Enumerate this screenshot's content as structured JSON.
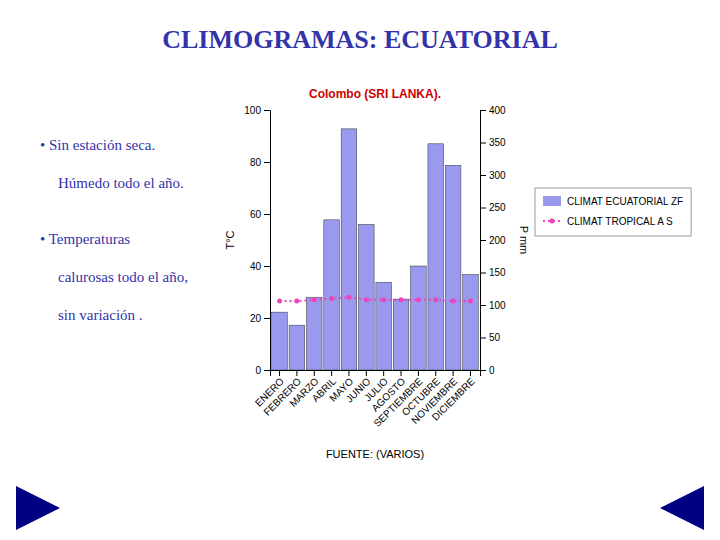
{
  "slide_title": "CLIMOGRAMAS: ECUATORIAL",
  "bullets": [
    [
      "• Sin estación seca.",
      "Húmedo todo el año."
    ],
    [
      "• Temperaturas",
      "calurosas todo el año,",
      "sin variación ."
    ]
  ],
  "chart_data": {
    "type": "bar",
    "title": "Colombo (SRI LANKA).",
    "subtitle": "FUENTE: (VARIOS)",
    "categories": [
      "ENERO",
      "FEBRERO",
      "MARZO",
      "ABRIL",
      "MAYO",
      "JUNIO",
      "JULIO",
      "AGOSTO",
      "SEPTIEMBRE",
      "OCTUBRE",
      "NOVIEMBRE",
      "DICIEMBRE"
    ],
    "series": [
      {
        "name": "CLIMAT ECUATORIAL ZF",
        "type": "bar",
        "color": "#9999ee",
        "axis": "y2",
        "values": [
          89,
          69,
          112,
          231,
          371,
          224,
          135,
          109,
          160,
          348,
          315,
          147
        ]
      },
      {
        "name": "CLIMAT TROPICAL A S",
        "type": "line",
        "color": "#ee44bb",
        "marker": "point",
        "line_style": "dotted",
        "values": [
          26.5,
          26.5,
          27.0,
          27.5,
          28.0,
          27.0,
          27.0,
          27.0,
          27.0,
          27.0,
          26.5,
          26.5
        ]
      }
    ],
    "ylabel": "T°C",
    "y2label": "P mm",
    "ylim": [
      0,
      100
    ],
    "yticks": [
      0,
      20,
      40,
      60,
      80,
      100
    ],
    "y2lim": [
      0,
      400
    ],
    "y2ticks": [
      0,
      50,
      100,
      150,
      200,
      250,
      300,
      350,
      400
    ],
    "grid": false,
    "legend": "right"
  }
}
